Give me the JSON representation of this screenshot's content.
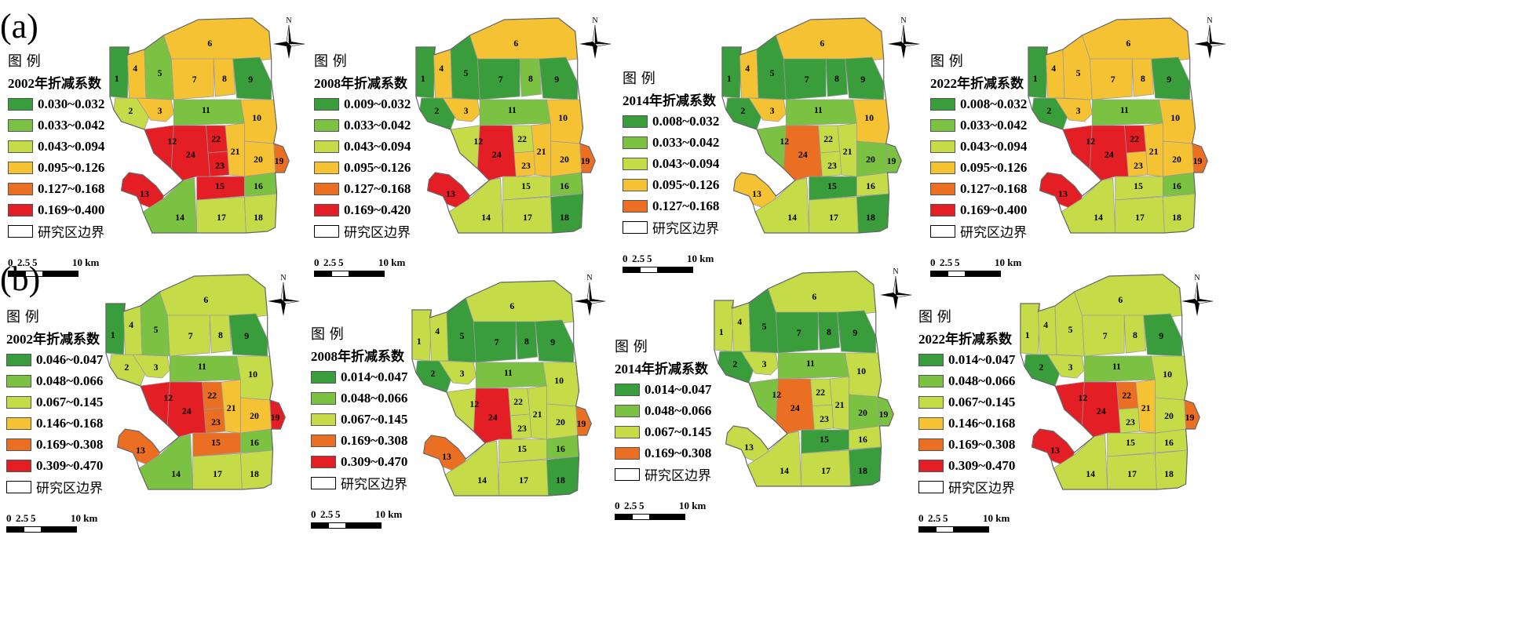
{
  "colors": {
    "dark_green": "#3a9d3c",
    "mid_green": "#7cc242",
    "yellow_green": "#c5dc48",
    "yellow": "#f5c233",
    "orange": "#ea6f22",
    "red": "#e31e24"
  },
  "north_arrow": {
    "label": "N",
    "icon": "north-arrow-icon"
  },
  "scale": {
    "ticks": [
      "0",
      "2.5",
      "5",
      "10 km"
    ]
  },
  "legend_common": {
    "title": "图 例",
    "boundary_label": "研究区边界"
  },
  "rows": [
    {
      "label": "(a)",
      "panels": [
        {
          "legend_title": "2002年折减系数",
          "classes": [
            {
              "label": "0.030~0.032",
              "color": "#3a9d3c"
            },
            {
              "label": "0.033~0.042",
              "color": "#7cc242"
            },
            {
              "label": "0.043~0.094",
              "color": "#c5dc48"
            },
            {
              "label": "0.095~0.126",
              "color": "#f5c233"
            },
            {
              "label": "0.127~0.168",
              "color": "#ea6f22"
            },
            {
              "label": "0.169~0.400",
              "color": "#e31e24"
            }
          ],
          "zones": {
            "1": "#3a9d3c",
            "2": "#c5dc48",
            "3": "#f5c233",
            "4": "#f5c233",
            "5": "#7cc242",
            "6": "#f5c233",
            "7": "#f5c233",
            "8": "#f5c233",
            "9": "#3a9d3c",
            "10": "#f5c233",
            "11": "#7cc242",
            "12": "#e31e24",
            "13": "#e31e24",
            "14": "#7cc242",
            "15": "#e31e24",
            "16": "#7cc242",
            "17": "#c5dc48",
            "18": "#c5dc48",
            "19": "#ea6f22",
            "20": "#f5c233",
            "21": "#f5c233",
            "22": "#e31e24",
            "23": "#e31e24",
            "24": "#e31e24"
          }
        },
        {
          "legend_title": "2008年折减系数",
          "classes": [
            {
              "label": "0.009~0.032",
              "color": "#3a9d3c"
            },
            {
              "label": "0.033~0.042",
              "color": "#7cc242"
            },
            {
              "label": "0.043~0.094",
              "color": "#c5dc48"
            },
            {
              "label": "0.095~0.126",
              "color": "#f5c233"
            },
            {
              "label": "0.127~0.168",
              "color": "#ea6f22"
            },
            {
              "label": "0.169~0.420",
              "color": "#e31e24"
            }
          ],
          "zones": {
            "1": "#3a9d3c",
            "2": "#3a9d3c",
            "3": "#f5c233",
            "4": "#f5c233",
            "5": "#3a9d3c",
            "6": "#f5c233",
            "7": "#3a9d3c",
            "8": "#7cc242",
            "9": "#3a9d3c",
            "10": "#f5c233",
            "11": "#7cc242",
            "12": "#c5dc48",
            "13": "#e31e24",
            "14": "#c5dc48",
            "15": "#c5dc48",
            "16": "#7cc242",
            "17": "#c5dc48",
            "18": "#3a9d3c",
            "19": "#ea6f22",
            "20": "#f5c233",
            "21": "#f5c233",
            "22": "#c5dc48",
            "23": "#f5c233",
            "24": "#e31e24"
          }
        },
        {
          "legend_title": "2014年折减系数",
          "classes": [
            {
              "label": "0.008~0.032",
              "color": "#3a9d3c"
            },
            {
              "label": "0.033~0.042",
              "color": "#7cc242"
            },
            {
              "label": "0.043~0.094",
              "color": "#c5dc48"
            },
            {
              "label": "0.095~0.126",
              "color": "#f5c233"
            },
            {
              "label": "0.127~0.168",
              "color": "#ea6f22"
            }
          ],
          "zones": {
            "1": "#3a9d3c",
            "2": "#3a9d3c",
            "3": "#f5c233",
            "4": "#f5c233",
            "5": "#3a9d3c",
            "6": "#f5c233",
            "7": "#3a9d3c",
            "8": "#3a9d3c",
            "9": "#3a9d3c",
            "10": "#f5c233",
            "11": "#7cc242",
            "12": "#7cc242",
            "13": "#f5c233",
            "14": "#c5dc48",
            "15": "#3a9d3c",
            "16": "#c5dc48",
            "17": "#c5dc48",
            "18": "#3a9d3c",
            "19": "#7cc242",
            "20": "#7cc242",
            "21": "#c5dc48",
            "22": "#c5dc48",
            "23": "#c5dc48",
            "24": "#ea6f22"
          }
        },
        {
          "legend_title": "2022年折减系数",
          "classes": [
            {
              "label": "0.008~0.032",
              "color": "#3a9d3c"
            },
            {
              "label": "0.033~0.042",
              "color": "#7cc242"
            },
            {
              "label": "0.043~0.094",
              "color": "#c5dc48"
            },
            {
              "label": "0.095~0.126",
              "color": "#f5c233"
            },
            {
              "label": "0.127~0.168",
              "color": "#ea6f22"
            },
            {
              "label": "0.169~0.400",
              "color": "#e31e24"
            }
          ],
          "zones": {
            "1": "#3a9d3c",
            "2": "#3a9d3c",
            "3": "#f5c233",
            "4": "#f5c233",
            "5": "#f5c233",
            "6": "#f5c233",
            "7": "#f5c233",
            "8": "#f5c233",
            "9": "#3a9d3c",
            "10": "#f5c233",
            "11": "#7cc242",
            "12": "#e31e24",
            "13": "#e31e24",
            "14": "#c5dc48",
            "15": "#c5dc48",
            "16": "#7cc242",
            "17": "#c5dc48",
            "18": "#c5dc48",
            "19": "#ea6f22",
            "20": "#f5c233",
            "21": "#f5c233",
            "22": "#e31e24",
            "23": "#f5c233",
            "24": "#e31e24"
          }
        }
      ]
    },
    {
      "label": "(b)",
      "panels": [
        {
          "legend_title": "2002年折减系数",
          "classes": [
            {
              "label": "0.046~0.047",
              "color": "#3a9d3c"
            },
            {
              "label": "0.048~0.066",
              "color": "#7cc242"
            },
            {
              "label": "0.067~0.145",
              "color": "#c5dc48"
            },
            {
              "label": "0.146~0.168",
              "color": "#f5c233"
            },
            {
              "label": "0.169~0.308",
              "color": "#ea6f22"
            },
            {
              "label": "0.309~0.470",
              "color": "#e31e24"
            }
          ],
          "zones": {
            "1": "#3a9d3c",
            "2": "#c5dc48",
            "3": "#c5dc48",
            "4": "#c5dc48",
            "5": "#7cc242",
            "6": "#c5dc48",
            "7": "#c5dc48",
            "8": "#c5dc48",
            "9": "#3a9d3c",
            "10": "#c5dc48",
            "11": "#7cc242",
            "12": "#e31e24",
            "13": "#ea6f22",
            "14": "#7cc242",
            "15": "#ea6f22",
            "16": "#7cc242",
            "17": "#c5dc48",
            "18": "#c5dc48",
            "19": "#e31e24",
            "20": "#f5c233",
            "21": "#f5c233",
            "22": "#ea6f22",
            "23": "#ea6f22",
            "24": "#e31e24"
          }
        },
        {
          "legend_title": "2008年折减系数",
          "classes": [
            {
              "label": "0.014~0.047",
              "color": "#3a9d3c"
            },
            {
              "label": "0.048~0.066",
              "color": "#7cc242"
            },
            {
              "label": "0.067~0.145",
              "color": "#c5dc48"
            },
            {
              "label": "0.169~0.308",
              "color": "#ea6f22"
            },
            {
              "label": "0.309~0.470",
              "color": "#e31e24"
            }
          ],
          "zones": {
            "1": "#c5dc48",
            "2": "#3a9d3c",
            "3": "#c5dc48",
            "4": "#c5dc48",
            "5": "#3a9d3c",
            "6": "#c5dc48",
            "7": "#3a9d3c",
            "8": "#3a9d3c",
            "9": "#3a9d3c",
            "10": "#c5dc48",
            "11": "#7cc242",
            "12": "#c5dc48",
            "13": "#ea6f22",
            "14": "#c5dc48",
            "15": "#c5dc48",
            "16": "#7cc242",
            "17": "#c5dc48",
            "18": "#3a9d3c",
            "19": "#ea6f22",
            "20": "#c5dc48",
            "21": "#c5dc48",
            "22": "#c5dc48",
            "23": "#c5dc48",
            "24": "#e31e24"
          }
        },
        {
          "legend_title": "2014年折减系数",
          "classes": [
            {
              "label": "0.014~0.047",
              "color": "#3a9d3c"
            },
            {
              "label": "0.048~0.066",
              "color": "#7cc242"
            },
            {
              "label": "0.067~0.145",
              "color": "#c5dc48"
            },
            {
              "label": "0.169~0.308",
              "color": "#ea6f22"
            }
          ],
          "zones": {
            "1": "#c5dc48",
            "2": "#3a9d3c",
            "3": "#c5dc48",
            "4": "#c5dc48",
            "5": "#3a9d3c",
            "6": "#c5dc48",
            "7": "#3a9d3c",
            "8": "#3a9d3c",
            "9": "#3a9d3c",
            "10": "#c5dc48",
            "11": "#7cc242",
            "12": "#7cc242",
            "13": "#c5dc48",
            "14": "#c5dc48",
            "15": "#3a9d3c",
            "16": "#c5dc48",
            "17": "#c5dc48",
            "18": "#3a9d3c",
            "19": "#7cc242",
            "20": "#7cc242",
            "21": "#c5dc48",
            "22": "#c5dc48",
            "23": "#c5dc48",
            "24": "#ea6f22"
          }
        },
        {
          "legend_title": "2022年折减系数",
          "classes": [
            {
              "label": "0.014~0.047",
              "color": "#3a9d3c"
            },
            {
              "label": "0.048~0.066",
              "color": "#7cc242"
            },
            {
              "label": "0.067~0.145",
              "color": "#c5dc48"
            },
            {
              "label": "0.146~0.168",
              "color": "#f5c233"
            },
            {
              "label": "0.169~0.308",
              "color": "#ea6f22"
            },
            {
              "label": "0.309~0.470",
              "color": "#e31e24"
            }
          ],
          "zones": {
            "1": "#c5dc48",
            "2": "#3a9d3c",
            "3": "#c5dc48",
            "4": "#c5dc48",
            "5": "#c5dc48",
            "6": "#c5dc48",
            "7": "#c5dc48",
            "8": "#c5dc48",
            "9": "#3a9d3c",
            "10": "#c5dc48",
            "11": "#7cc242",
            "12": "#e31e24",
            "13": "#e31e24",
            "14": "#c5dc48",
            "15": "#c5dc48",
            "16": "#c5dc48",
            "17": "#c5dc48",
            "18": "#c5dc48",
            "19": "#ea6f22",
            "20": "#c5dc48",
            "21": "#f5c233",
            "22": "#ea6f22",
            "23": "#c5dc48",
            "24": "#e31e24"
          }
        }
      ]
    }
  ]
}
